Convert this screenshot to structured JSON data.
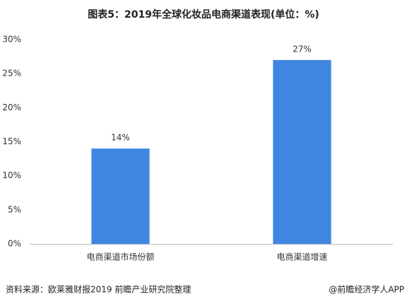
{
  "chart_data": {
    "type": "bar",
    "title": "图表5：2019年全球化妆品电商渠道表现(单位：%)",
    "categories": [
      "电商渠道市场份额",
      "电商渠道增速"
    ],
    "values": [
      14,
      27
    ],
    "value_labels": [
      "14%",
      "27%"
    ],
    "color": "#3f86e2",
    "ylim": [
      0,
      30
    ],
    "yticks": [
      {
        "value": 0,
        "label": "0%"
      },
      {
        "value": 5,
        "label": "5%"
      },
      {
        "value": 10,
        "label": "10%"
      },
      {
        "value": 15,
        "label": "15%"
      },
      {
        "value": 20,
        "label": "20%"
      },
      {
        "value": 25,
        "label": "25%"
      },
      {
        "value": 30,
        "label": "30%"
      }
    ],
    "grid": false,
    "source": "资料来源：欧莱雅财报2019 前瞻产业研究院整理",
    "credit": "@前瞻经济学人APP"
  }
}
